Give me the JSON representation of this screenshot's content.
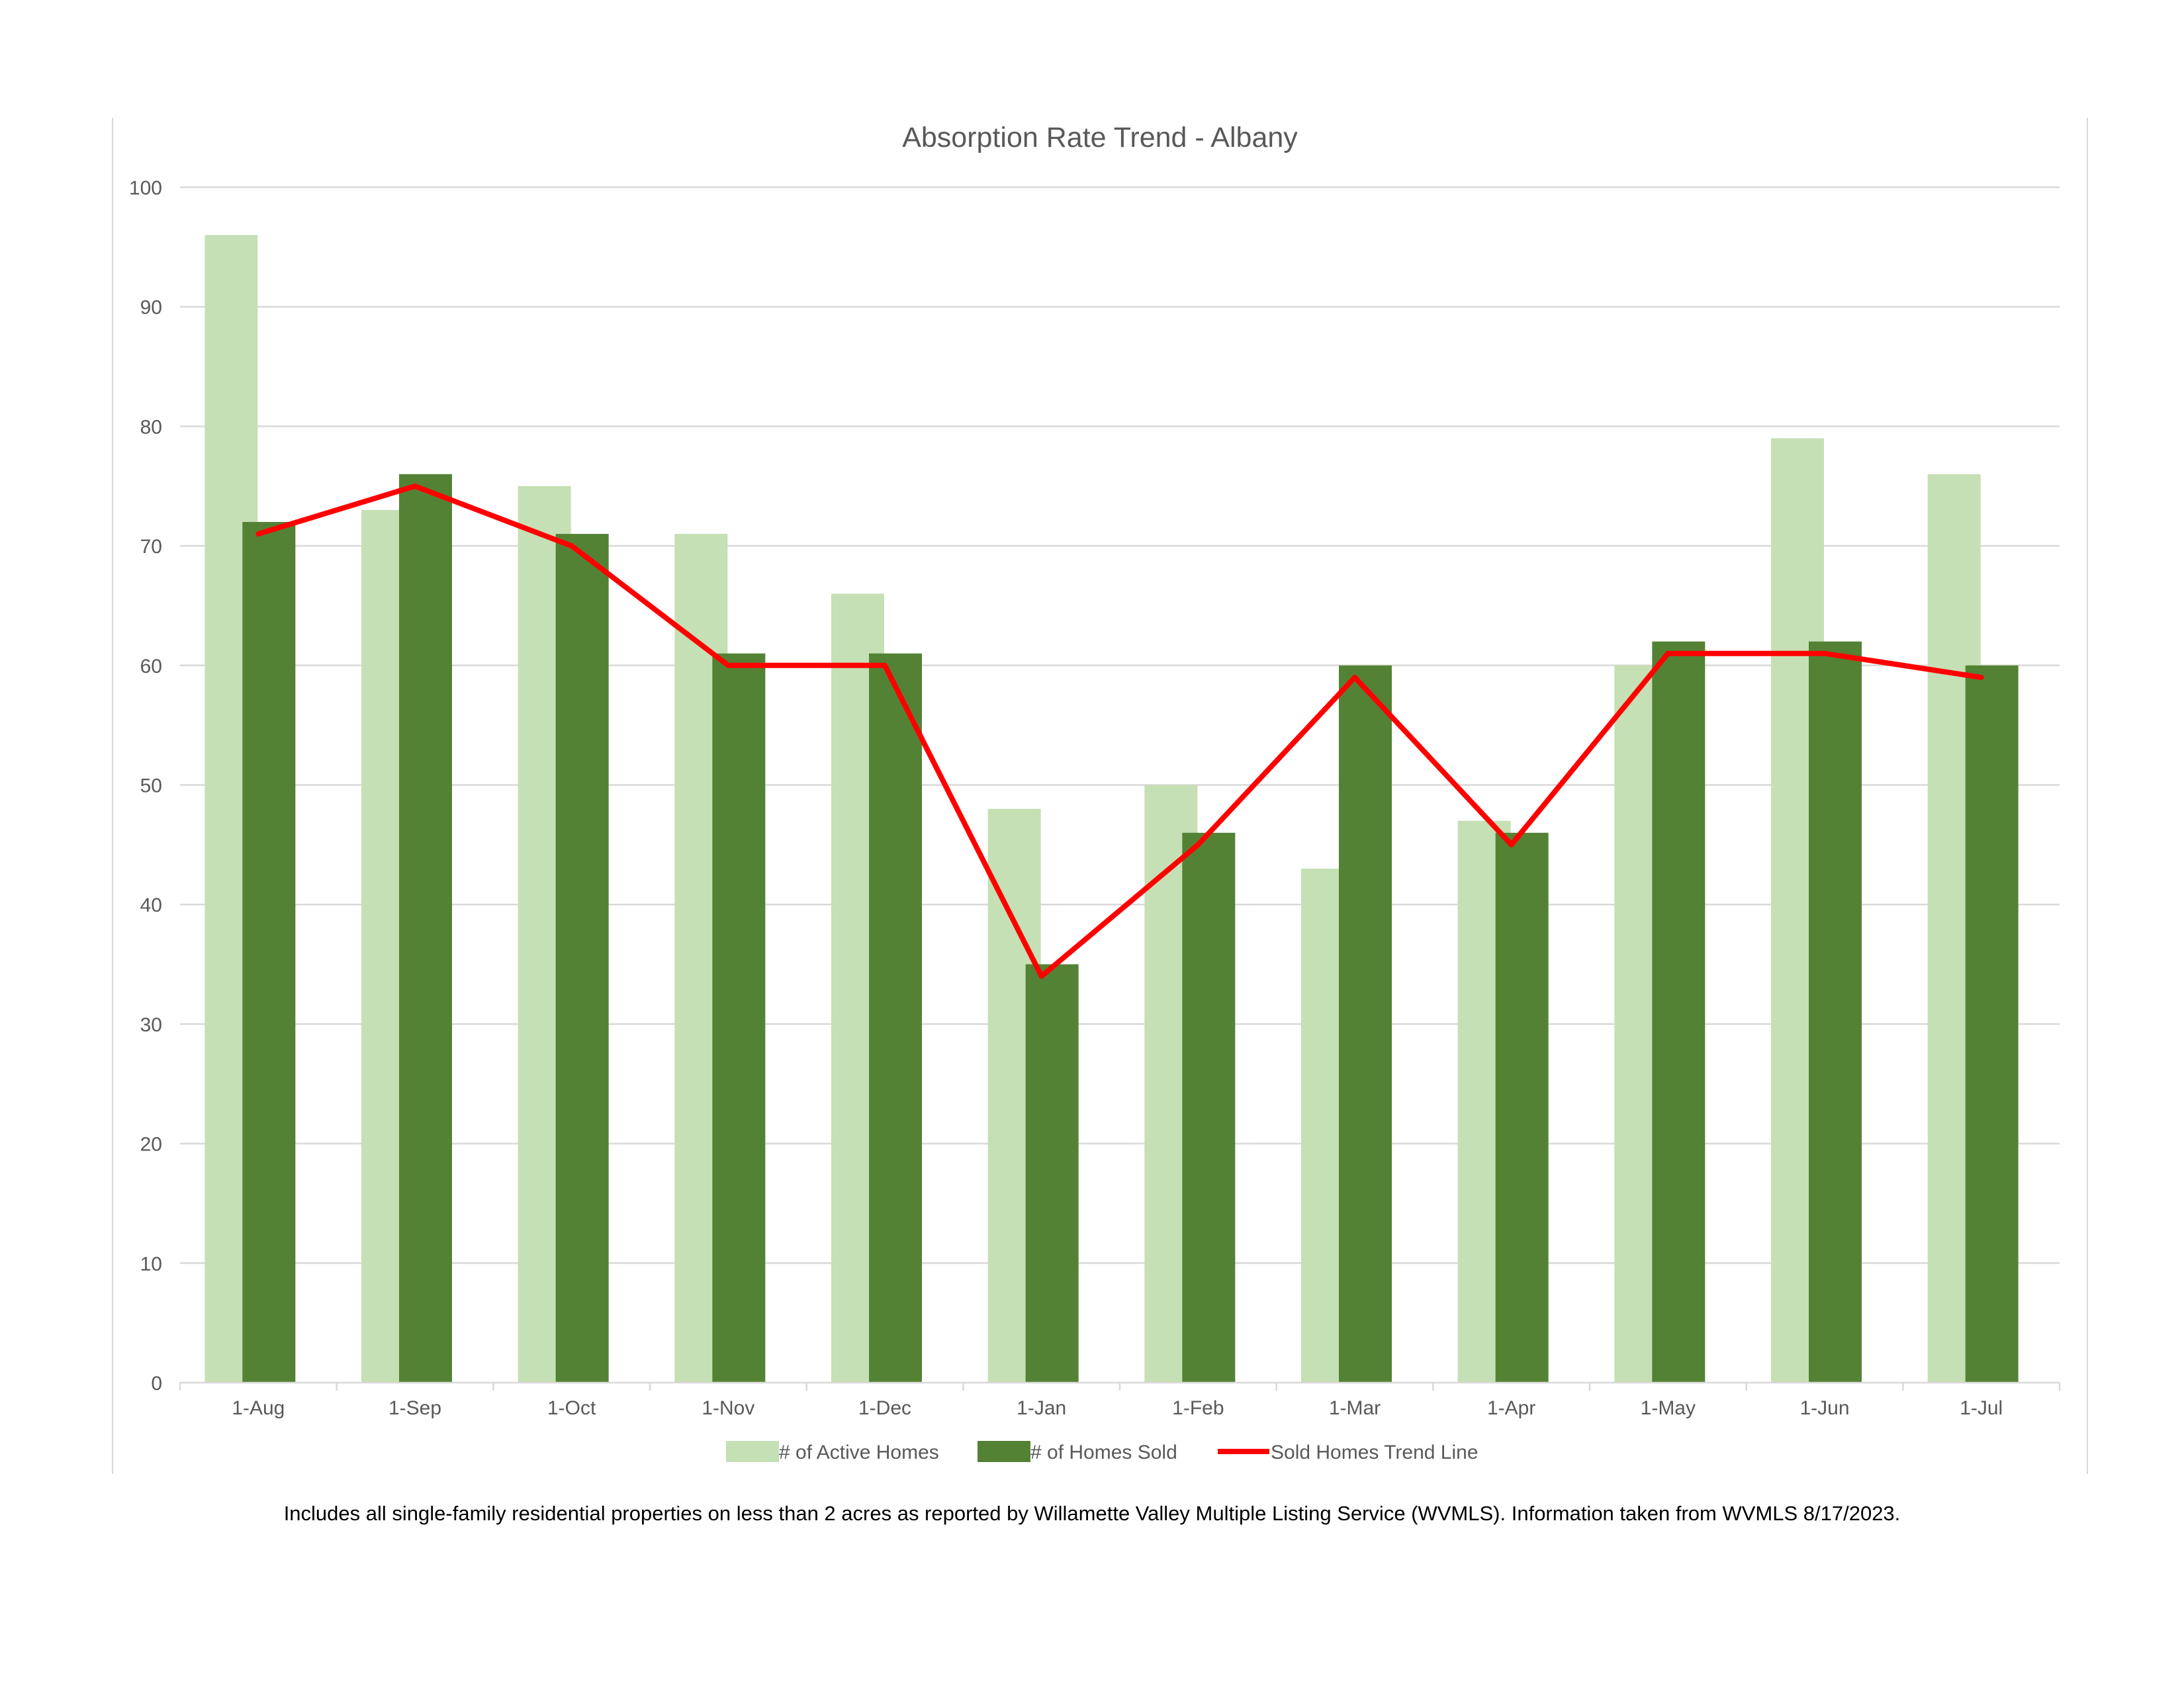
{
  "footnote": "Includes all single-family residential properties on less than 2 acres as reported by Willamette Valley Multiple Listing Service (WVMLS). Information taken from WVMLS 8/17/2023.",
  "colors": {
    "active": "#c5e0b4",
    "sold": "#548235",
    "trend": "#ff0000",
    "grid": "#d9d9d9",
    "text": "#595959"
  },
  "chart_data": {
    "type": "bar",
    "title": "Absorption Rate Trend - Albany",
    "xlabel": "",
    "ylabel": "",
    "ylim": [
      0,
      100
    ],
    "yticks": [
      0,
      10,
      20,
      30,
      40,
      50,
      60,
      70,
      80,
      90,
      100
    ],
    "grid": true,
    "legend_position": "bottom",
    "categories": [
      "1-Aug",
      "1-Sep",
      "1-Oct",
      "1-Nov",
      "1-Dec",
      "1-Jan",
      "1-Feb",
      "1-Mar",
      "1-Apr",
      "1-May",
      "1-Jun",
      "1-Jul"
    ],
    "series": [
      {
        "name": "# of Active Homes",
        "kind": "bar",
        "values": [
          96,
          73,
          75,
          71,
          66,
          48,
          50,
          43,
          47,
          60,
          79,
          76
        ]
      },
      {
        "name": "# of Homes Sold",
        "kind": "bar",
        "values": [
          72,
          76,
          71,
          61,
          61,
          35,
          46,
          60,
          46,
          62,
          62,
          60
        ]
      },
      {
        "name": "Sold Homes Trend Line",
        "kind": "line",
        "values": [
          71,
          75,
          70,
          60,
          60,
          34,
          45,
          59,
          45,
          61,
          61,
          59
        ]
      }
    ]
  }
}
